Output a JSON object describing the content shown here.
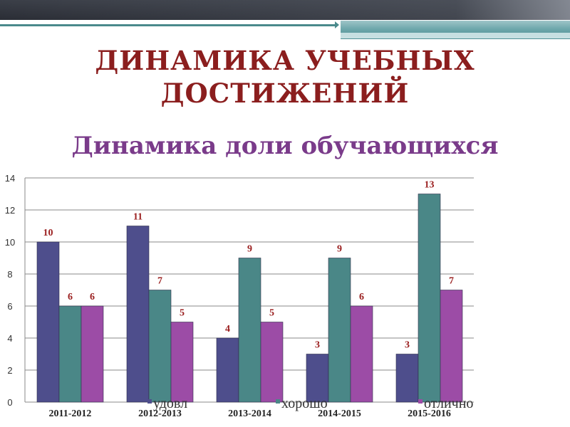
{
  "title_line1": "ДИНАМИКА УЧЕБНЫХ",
  "title_line2": "ДОСТИЖЕНИЙ",
  "subtitle": "Динамика доли обучающихся",
  "colors": {
    "title": "#8b1e1e",
    "subtitle": "#7a3b8a",
    "udovl": "#4e4e8c",
    "khorosho": "#4a8787",
    "otlichno": "#9c4ca6"
  },
  "chart_data": {
    "type": "bar",
    "categories": [
      "2011-2012",
      "2012-2013",
      "2013-2014",
      "2014-2015",
      "2015-2016"
    ],
    "series": [
      {
        "name": "удовл",
        "values": [
          10,
          11,
          4,
          3,
          3
        ],
        "color": "#4e4e8c"
      },
      {
        "name": "хорошо",
        "values": [
          6,
          7,
          9,
          9,
          13
        ],
        "color": "#4a8787"
      },
      {
        "name": "отлично",
        "values": [
          6,
          5,
          5,
          6,
          7
        ],
        "color": "#9c4ca6"
      }
    ],
    "y_ticks": [
      0,
      2,
      4,
      6,
      8,
      10,
      12,
      14
    ],
    "ylim": [
      0,
      14
    ],
    "grid": true,
    "legend_position": "bottom"
  }
}
